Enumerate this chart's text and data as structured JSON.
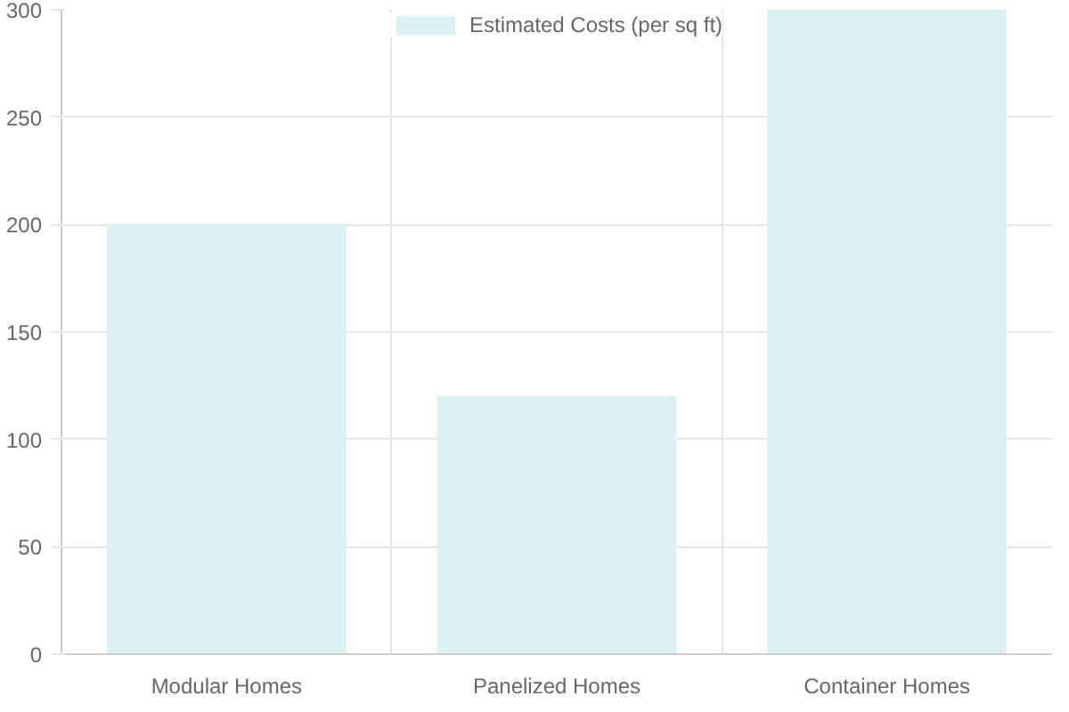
{
  "chart_data": {
    "type": "bar",
    "categories": [
      "Modular Homes",
      "Panelized Homes",
      "Container Homes"
    ],
    "series": [
      {
        "name": "Estimated Costs (per sq ft)",
        "color": "#dbf2f2",
        "values": [
          200,
          120,
          300
        ]
      }
    ],
    "ylim": [
      0,
      300
    ],
    "yticks": [
      0,
      50,
      100,
      150,
      200,
      250,
      300
    ],
    "grid": true,
    "legend": "top"
  }
}
